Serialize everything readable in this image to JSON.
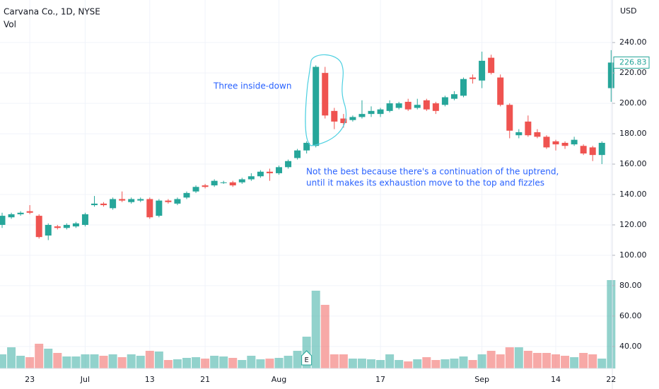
{
  "chart_data": {
    "type": "candlestick",
    "title": "Carvana Co., 1D, NYSE",
    "currency": "USD",
    "up_color": "#26a69a",
    "down_color": "#ef5350",
    "categories": [
      null,
      null,
      null,
      "23",
      null,
      null,
      null,
      null,
      null,
      "Jul",
      null,
      null,
      null,
      null,
      null,
      null,
      "13",
      null,
      null,
      null,
      null,
      null,
      "21",
      null,
      null,
      null,
      null,
      null,
      null,
      null,
      "Aug",
      null,
      null,
      null,
      null,
      null,
      null,
      null,
      null,
      null,
      null,
      "17",
      null,
      null,
      null,
      null,
      null,
      null,
      null,
      null,
      null,
      null,
      "Sep",
      null,
      null,
      null,
      null,
      null,
      null,
      null,
      "14",
      null,
      null,
      null,
      null,
      null,
      "22"
    ],
    "open": [
      120,
      125,
      127,
      129,
      126,
      113,
      119,
      118,
      119,
      120,
      133,
      134,
      131,
      137,
      135,
      136,
      137,
      126,
      136,
      134,
      138,
      142,
      146,
      146,
      148,
      148,
      148,
      150,
      152,
      155,
      154,
      158,
      164,
      169,
      172,
      220,
      195,
      190,
      189,
      191,
      193,
      193,
      195,
      197,
      201,
      197,
      202,
      200,
      199,
      203,
      205,
      217,
      215,
      230,
      217,
      199,
      179,
      188,
      181,
      178,
      175,
      174,
      173,
      172,
      171,
      166,
      210
    ],
    "high": [
      128,
      128,
      129,
      133,
      127,
      121,
      120,
      121,
      122,
      128,
      139,
      135,
      138,
      142,
      138,
      138,
      138,
      137,
      137,
      138,
      142,
      146,
      147,
      150,
      149,
      149,
      151,
      154,
      156,
      157,
      159,
      163,
      170,
      175,
      225,
      224,
      197,
      193,
      192,
      202,
      198,
      197,
      202,
      201,
      203,
      203,
      203,
      201,
      205,
      208,
      217,
      219,
      234,
      232,
      219,
      200,
      183,
      192,
      183,
      179,
      176,
      175,
      178,
      173,
      172,
      175,
      235
    ],
    "low": [
      118,
      124,
      126,
      127,
      111,
      110,
      117,
      117,
      118,
      119,
      132,
      132,
      130,
      135,
      134,
      135,
      124,
      125,
      134,
      133,
      137,
      141,
      144,
      145,
      147,
      145,
      147,
      149,
      151,
      149,
      153,
      157,
      163,
      167,
      171,
      190,
      183,
      184,
      188,
      190,
      191,
      191,
      194,
      196,
      195,
      196,
      195,
      193,
      198,
      202,
      204,
      213,
      210,
      219,
      198,
      177,
      177,
      178,
      177,
      170,
      169,
      170,
      172,
      166,
      162,
      160,
      201
    ],
    "close": [
      126,
      127,
      128,
      128,
      112,
      120,
      118,
      120,
      121,
      127,
      134,
      133,
      137,
      136,
      137,
      137,
      125,
      136,
      135,
      137,
      141,
      145,
      145,
      149,
      148,
      146,
      150,
      152,
      155,
      154,
      158,
      162,
      169,
      174,
      224,
      192,
      188,
      187,
      191,
      193,
      195,
      196,
      200,
      200,
      196,
      199,
      196,
      195,
      204,
      206,
      216,
      216,
      228,
      220,
      199,
      182,
      181,
      179,
      178,
      171,
      173,
      172,
      176,
      167,
      166,
      174,
      226.83
    ],
    "volume": {
      "name": "Vol",
      "vlim": [
        0,
        131
      ],
      "values": [
        20,
        30,
        18,
        16,
        35,
        28,
        22,
        17,
        17,
        20,
        20,
        18,
        20,
        16,
        20,
        18,
        25,
        24,
        12,
        13,
        15,
        16,
        14,
        18,
        17,
        15,
        12,
        18,
        13,
        14,
        15,
        18,
        25,
        45,
        110,
        90,
        20,
        20,
        14,
        14,
        13,
        12,
        20,
        12,
        10,
        13,
        16,
        12,
        13,
        14,
        17,
        12,
        20,
        25,
        20,
        30,
        30,
        25,
        22,
        22,
        20,
        18,
        16,
        22,
        20,
        14,
        125
      ]
    },
    "ylim": [
      25.5,
      268
    ],
    "yticks": [
      {
        "value": 240,
        "label": "240.00"
      },
      {
        "value": 220,
        "label": "220.00"
      },
      {
        "value": 200,
        "label": "200.00"
      },
      {
        "value": 180,
        "label": "180.00"
      },
      {
        "value": 160,
        "label": "160.00"
      },
      {
        "value": 140,
        "label": "140.00"
      },
      {
        "value": 120,
        "label": "120.00"
      },
      {
        "value": 100,
        "label": "100.00"
      },
      {
        "value": 80,
        "label": "80.00"
      },
      {
        "value": 60,
        "label": "60.00"
      },
      {
        "value": 40,
        "label": "40.00"
      }
    ],
    "last_price": {
      "value": 226.83,
      "label": "226.83"
    },
    "earnings_label": "E",
    "grid": true,
    "annotations": {
      "pattern": "Three inside-down",
      "note": [
        "Not the best because there's a continuation of the uptrend,",
        "until it makes its exhaustion move to the top and fizzles"
      ]
    }
  }
}
